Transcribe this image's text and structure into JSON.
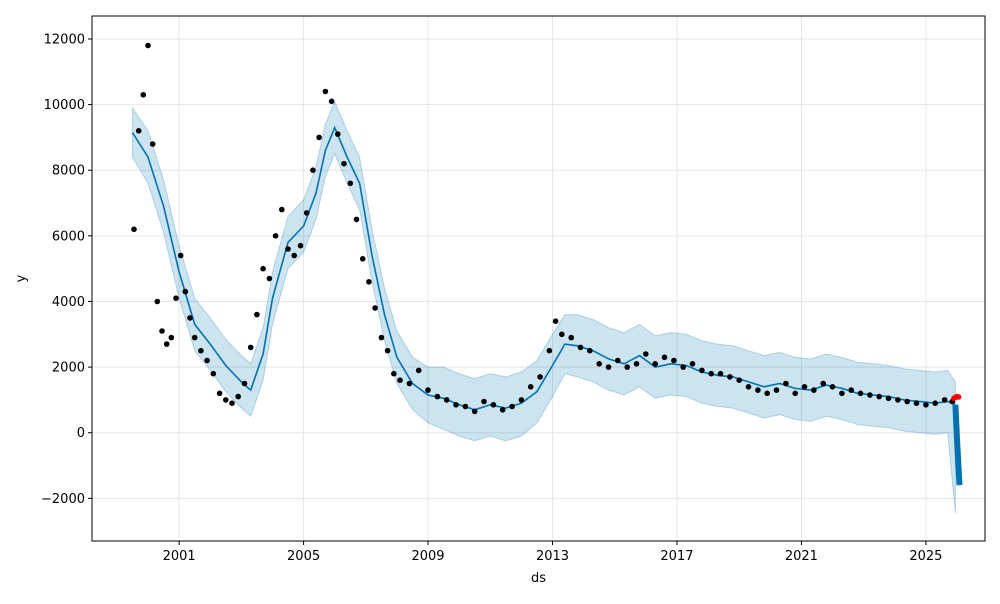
{
  "chart_data": {
    "type": "line",
    "title": "",
    "xlabel": "ds",
    "ylabel": "y",
    "xlim": [
      1998.2,
      2026.9
    ],
    "ylim": [
      -3300,
      12700
    ],
    "x_ticks": [
      {
        "value": 2001,
        "label": "2001"
      },
      {
        "value": 2005,
        "label": "2005"
      },
      {
        "value": 2009,
        "label": "2009"
      },
      {
        "value": 2013,
        "label": "2013"
      },
      {
        "value": 2017,
        "label": "2017"
      },
      {
        "value": 2021,
        "label": "2021"
      },
      {
        "value": 2025,
        "label": "2025"
      }
    ],
    "y_ticks": [
      {
        "value": 12000,
        "label": "12000"
      },
      {
        "value": 10000,
        "label": "10000"
      },
      {
        "value": 8000,
        "label": "8000"
      },
      {
        "value": 6000,
        "label": "6000"
      },
      {
        "value": 4000,
        "label": "4000"
      },
      {
        "value": 2000,
        "label": "2000"
      },
      {
        "value": 0,
        "label": "0"
      },
      {
        "value": -2000,
        "label": "−2000"
      }
    ],
    "grid": true,
    "colors": {
      "observed": "#000000",
      "forecast_line": "#0072B2",
      "interval_fill": "#0072B2",
      "highlight": "#ff0000",
      "grid": "#e6e6e6"
    },
    "series": [
      {
        "role": "forecast",
        "x": [
          1999.5,
          2000.0,
          2000.5,
          2001.0,
          2001.5,
          2002.0,
          2002.5,
          2003.0,
          2003.3,
          2003.7,
          2004.0,
          2004.5,
          2005.0,
          2005.4,
          2005.7,
          2006.0,
          2006.4,
          2006.8,
          2007.2,
          2007.6,
          2008.0,
          2008.5,
          2009.0,
          2009.5,
          2010.0,
          2010.5,
          2011.0,
          2011.5,
          2012.0,
          2012.5,
          2013.0,
          2013.4,
          2013.8,
          2014.3,
          2014.8,
          2015.3,
          2015.8,
          2016.3,
          2016.8,
          2017.3,
          2017.8,
          2018.3,
          2018.8,
          2019.3,
          2019.8,
          2020.3,
          2020.8,
          2021.3,
          2021.8,
          2022.3,
          2022.8,
          2023.3,
          2023.8,
          2024.3,
          2024.8,
          2025.3,
          2025.7,
          2025.95
        ],
        "y": [
          9150,
          8400,
          6900,
          4900,
          3300,
          2700,
          2050,
          1550,
          1300,
          2400,
          4100,
          5800,
          6300,
          7300,
          8600,
          9300,
          8400,
          7600,
          5400,
          3600,
          2300,
          1500,
          1150,
          1050,
          850,
          700,
          850,
          750,
          900,
          1250,
          2050,
          2700,
          2650,
          2500,
          2250,
          2100,
          2350,
          2000,
          2100,
          2050,
          1850,
          1750,
          1700,
          1550,
          1400,
          1500,
          1350,
          1300,
          1450,
          1350,
          1200,
          1150,
          1100,
          1000,
          950,
          900,
          950,
          850
        ]
      },
      {
        "role": "interval",
        "x": [
          1999.5,
          2000.0,
          2000.5,
          2001.0,
          2001.5,
          2002.0,
          2002.5,
          2003.0,
          2003.3,
          2003.7,
          2004.0,
          2004.5,
          2005.0,
          2005.4,
          2005.7,
          2006.0,
          2006.4,
          2006.8,
          2007.2,
          2007.6,
          2008.0,
          2008.5,
          2009.0,
          2009.5,
          2010.0,
          2010.5,
          2011.0,
          2011.5,
          2012.0,
          2012.5,
          2013.0,
          2013.4,
          2013.8,
          2014.3,
          2014.8,
          2015.3,
          2015.8,
          2016.3,
          2016.8,
          2017.3,
          2017.8,
          2018.3,
          2018.8,
          2019.3,
          2019.8,
          2020.3,
          2020.8,
          2021.3,
          2021.8,
          2022.3,
          2022.8,
          2023.3,
          2023.8,
          2024.3,
          2024.8,
          2025.3,
          2025.7,
          2025.95
        ],
        "lower": [
          8400,
          7600,
          6100,
          4100,
          2500,
          1900,
          1250,
          750,
          500,
          1600,
          3300,
          5000,
          5500,
          6500,
          7800,
          8500,
          7600,
          6800,
          4600,
          2800,
          1500,
          700,
          300,
          100,
          -100,
          -250,
          -100,
          -250,
          -100,
          300,
          1100,
          1800,
          1700,
          1550,
          1300,
          1150,
          1400,
          1050,
          1150,
          1100,
          900,
          800,
          750,
          600,
          450,
          550,
          400,
          350,
          500,
          400,
          250,
          200,
          150,
          50,
          0,
          -50,
          0,
          -2450
        ],
        "upper": [
          9900,
          9200,
          7700,
          5700,
          4100,
          3500,
          2850,
          2350,
          2100,
          3200,
          4900,
          6600,
          7100,
          8100,
          9400,
          10100,
          9200,
          8400,
          6200,
          4400,
          3100,
          2300,
          2000,
          2000,
          1800,
          1650,
          1800,
          1700,
          1850,
          2200,
          3000,
          3600,
          3600,
          3450,
          3200,
          3050,
          3300,
          2950,
          3050,
          3000,
          2800,
          2700,
          2650,
          2500,
          2350,
          2450,
          2300,
          2250,
          2400,
          2300,
          2150,
          2100,
          2050,
          1950,
          1900,
          1850,
          1900,
          1550
        ]
      },
      {
        "role": "observed",
        "x": [
          1999.55,
          1999.7,
          1999.85,
          2000.0,
          2000.15,
          2000.3,
          2000.45,
          2000.6,
          2000.75,
          2000.9,
          2001.05,
          2001.2,
          2001.35,
          2001.5,
          2001.7,
          2001.9,
          2002.1,
          2002.3,
          2002.5,
          2002.7,
          2002.9,
          2003.1,
          2003.3,
          2003.5,
          2003.7,
          2003.9,
          2004.1,
          2004.3,
          2004.5,
          2004.7,
          2004.9,
          2005.1,
          2005.3,
          2005.5,
          2005.7,
          2005.9,
          2006.1,
          2006.3,
          2006.5,
          2006.7,
          2006.9,
          2007.1,
          2007.3,
          2007.5,
          2007.7,
          2007.9,
          2008.1,
          2008.4,
          2008.7,
          2009.0,
          2009.3,
          2009.6,
          2009.9,
          2010.2,
          2010.5,
          2010.8,
          2011.1,
          2011.4,
          2011.7,
          2012.0,
          2012.3,
          2012.6,
          2012.9,
          2013.1,
          2013.3,
          2013.6,
          2013.9,
          2014.2,
          2014.5,
          2014.8,
          2015.1,
          2015.4,
          2015.7,
          2016.0,
          2016.3,
          2016.6,
          2016.9,
          2017.2,
          2017.5,
          2017.8,
          2018.1,
          2018.4,
          2018.7,
          2019.0,
          2019.3,
          2019.6,
          2019.9,
          2020.2,
          2020.5,
          2020.8,
          2021.1,
          2021.4,
          2021.7,
          2022.0,
          2022.3,
          2022.6,
          2022.9,
          2023.2,
          2023.5,
          2023.8,
          2024.1,
          2024.4,
          2024.7,
          2025.0,
          2025.3,
          2025.6,
          2025.85
        ],
        "y": [
          6200,
          9200,
          10300,
          11800,
          8800,
          4000,
          3100,
          2700,
          2900,
          4100,
          5400,
          4300,
          3500,
          2900,
          2500,
          2200,
          1800,
          1200,
          1000,
          900,
          1100,
          1500,
          2600,
          3600,
          5000,
          4700,
          6000,
          6800,
          5600,
          5400,
          5700,
          6700,
          8000,
          9000,
          10400,
          10100,
          9100,
          8200,
          7600,
          6500,
          5300,
          4600,
          3800,
          2900,
          2500,
          1800,
          1600,
          1500,
          1900,
          1300,
          1100,
          1000,
          850,
          800,
          650,
          950,
          850,
          700,
          800,
          1000,
          1400,
          1700,
          2500,
          3400,
          3000,
          2900,
          2600,
          2500,
          2100,
          2000,
          2200,
          2000,
          2100,
          2400,
          2100,
          2300,
          2200,
          2000,
          2100,
          1900,
          1800,
          1800,
          1700,
          1600,
          1400,
          1300,
          1200,
          1300,
          1500,
          1200,
          1400,
          1300,
          1500,
          1400,
          1200,
          1300,
          1200,
          1150,
          1100,
          1050,
          1000,
          950,
          900,
          850,
          900,
          1000,
          950
        ]
      },
      {
        "role": "forecast_drop",
        "x": [
          2025.95,
          2026.0,
          2026.05,
          2026.08
        ],
        "y": [
          850,
          -200,
          -1100,
          -1600
        ]
      },
      {
        "role": "highlight",
        "x": [
          2025.9,
          2025.95,
          2026.0,
          2026.05
        ],
        "y": [
          1050,
          1080,
          1100,
          1090
        ]
      }
    ]
  }
}
